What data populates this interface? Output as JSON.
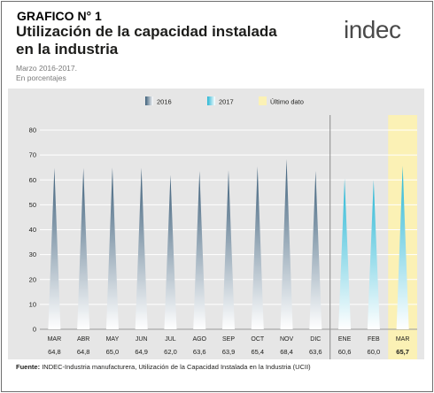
{
  "heading_label": "GRAFICO N° 1",
  "title_line1": "Utilización de la capacidad instalada",
  "title_line2": "en la industria",
  "subtitle_line1": "Marzo 2016-2017.",
  "subtitle_line2": "En porcentajes",
  "logo": {
    "text_prefix": "indec",
    "accent_color": "#3db4c8"
  },
  "source_label": "Fuente:",
  "source_text": "INDEC-Industria manufacturera, Utilización de la Capacidad Instalada en la Industria (UCII)",
  "colors": {
    "series_2016": "#3d5f7a",
    "series_2017": "#27b6d4",
    "last_value_highlight": "#fbf1b5",
    "panel_bg": "#e6e6e6"
  },
  "chart_data": {
    "type": "bar",
    "ylim": [
      0,
      80
    ],
    "yticks": [
      0,
      10,
      20,
      30,
      40,
      50,
      60,
      70,
      80
    ],
    "categories": [
      "MAR",
      "ABR",
      "MAY",
      "JUN",
      "JUL",
      "AGO",
      "SEP",
      "OCT",
      "NOV",
      "DIC",
      "ENE",
      "FEB",
      "MAR"
    ],
    "values": [
      64.8,
      64.8,
      65.0,
      64.9,
      62.0,
      63.6,
      63.9,
      65.4,
      68.4,
      63.6,
      60.6,
      60.0,
      65.7
    ],
    "value_labels": [
      "64,8",
      "64,8",
      "65,0",
      "64,9",
      "62,0",
      "63,6",
      "63,9",
      "65,4",
      "68,4",
      "63,6",
      "60,6",
      "60,0",
      "65,7"
    ],
    "series_assignment": [
      "2016",
      "2016",
      "2016",
      "2016",
      "2016",
      "2016",
      "2016",
      "2016",
      "2016",
      "2016",
      "2017",
      "2017",
      "2017"
    ],
    "legend": [
      {
        "name": "2016",
        "color": "#3d5f7a"
      },
      {
        "name": "2017",
        "color": "#27b6d4"
      },
      {
        "name": "Último dato",
        "color": "#fbf1b5"
      }
    ],
    "highlighted_index": 12,
    "grid": true
  }
}
